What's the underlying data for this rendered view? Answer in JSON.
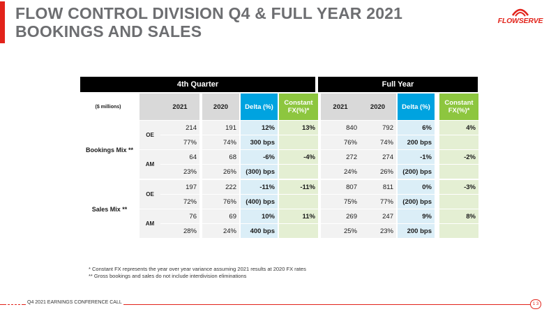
{
  "title": {
    "line1": "FLOW CONTROL DIVISION Q4 & FULL YEAR 2021",
    "line2": "BOOKINGS AND SALES"
  },
  "logo": {
    "text": "FLOWSERVE",
    "icon": "flowserve-logo-icon"
  },
  "table": {
    "group_headers": {
      "q4": "4th Quarter",
      "fy": "Full Year"
    },
    "units_label": "($ millions)",
    "col_headers": {
      "y2021": "2021",
      "y2020": "2020",
      "delta": "Delta (%)",
      "cfx_line1": "Constant",
      "cfx_line2": "FX(%)*"
    },
    "sections": [
      {
        "label": "Bookings Mix **",
        "groups": [
          {
            "label": "OE",
            "rows": [
              {
                "q4_2021": "214",
                "q4_2020": "191",
                "q4_delta": "12%",
                "q4_cfx": "13%",
                "fy_2021": "840",
                "fy_2020": "792",
                "fy_delta": "6%",
                "fy_cfx": "4%"
              },
              {
                "q4_2021": "77%",
                "q4_2020": "74%",
                "q4_delta": "300 bps",
                "q4_cfx": "",
                "fy_2021": "76%",
                "fy_2020": "74%",
                "fy_delta": "200 bps",
                "fy_cfx": ""
              }
            ]
          },
          {
            "label": "AM",
            "rows": [
              {
                "q4_2021": "64",
                "q4_2020": "68",
                "q4_delta": "-6%",
                "q4_cfx": "-4%",
                "fy_2021": "272",
                "fy_2020": "274",
                "fy_delta": "-1%",
                "fy_cfx": "-2%"
              },
              {
                "q4_2021": "23%",
                "q4_2020": "26%",
                "q4_delta": "(300) bps",
                "q4_cfx": "",
                "fy_2021": "24%",
                "fy_2020": "26%",
                "fy_delta": "(200) bps",
                "fy_cfx": ""
              }
            ]
          }
        ]
      },
      {
        "label": "Sales Mix **",
        "groups": [
          {
            "label": "OE",
            "rows": [
              {
                "q4_2021": "197",
                "q4_2020": "222",
                "q4_delta": "-11%",
                "q4_cfx": "-11%",
                "fy_2021": "807",
                "fy_2020": "811",
                "fy_delta": "0%",
                "fy_cfx": "-3%"
              },
              {
                "q4_2021": "72%",
                "q4_2020": "76%",
                "q4_delta": "(400) bps",
                "q4_cfx": "",
                "fy_2021": "75%",
                "fy_2020": "77%",
                "fy_delta": "(200) bps",
                "fy_cfx": ""
              }
            ]
          },
          {
            "label": "AM",
            "rows": [
              {
                "q4_2021": "76",
                "q4_2020": "69",
                "q4_delta": "10%",
                "q4_cfx": "11%",
                "fy_2021": "269",
                "fy_2020": "247",
                "fy_delta": "9%",
                "fy_cfx": "8%"
              },
              {
                "q4_2021": "28%",
                "q4_2020": "24%",
                "q4_delta": "400 bps",
                "q4_cfx": "",
                "fy_2021": "25%",
                "fy_2020": "23%",
                "fy_delta": "200 bps",
                "fy_cfx": ""
              }
            ]
          }
        ]
      }
    ]
  },
  "notes": {
    "line1": "* Constant FX represents the year over year variance assuming 2021 results at 2020 FX rates",
    "line2": "** Gross bookings and sales do not include interdivision eliminations"
  },
  "footer": {
    "text": "Q4 2021 EARNINGS CONFERENCE CALL",
    "page": "1 3"
  },
  "colors": {
    "brand_red": "#e2231a",
    "title_grey": "#6d6e71",
    "header_blue": "#00a3e0",
    "header_green": "#8dc63f",
    "cell_blue": "#dbeef7",
    "cell_green": "#e4efd3"
  }
}
